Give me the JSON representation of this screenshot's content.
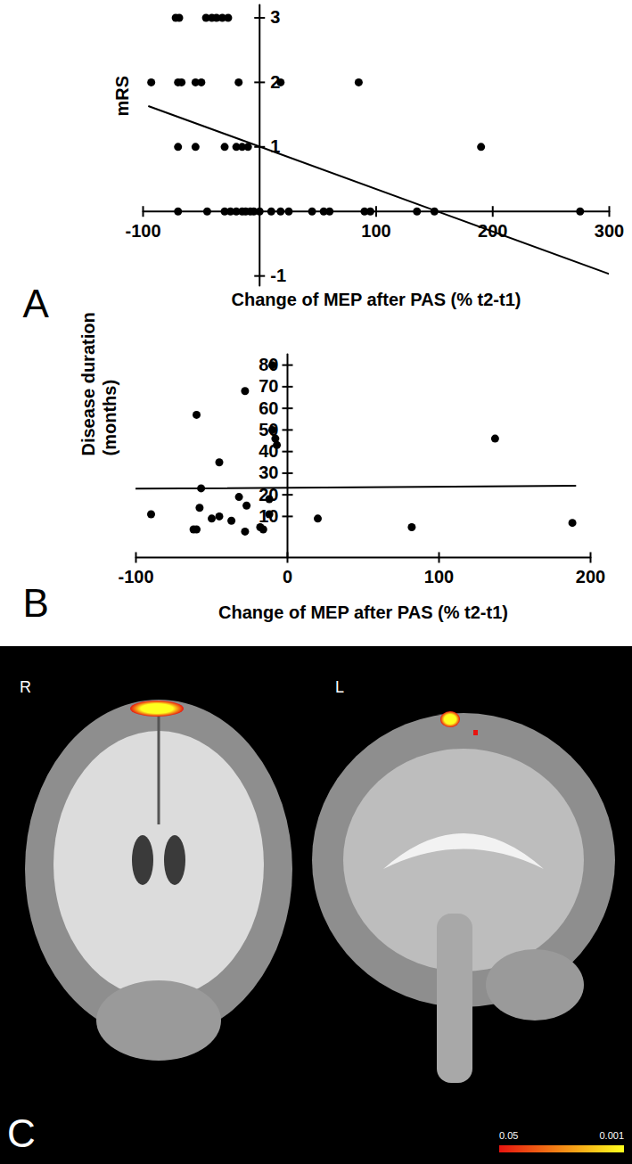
{
  "chart_data": [
    {
      "type": "scatter",
      "annotations": [
        "A"
      ],
      "xlabel": "Change of MEP after PAS (% t2-t1)",
      "ylabel": "mRS",
      "x": [
        -72,
        -69,
        -46,
        -41,
        -37,
        -32,
        -27,
        -93,
        -70,
        -67,
        -55,
        -50,
        -18,
        18,
        85,
        -70,
        -55,
        -30,
        -20,
        -15,
        -10,
        190,
        -70,
        -45,
        -30,
        -25,
        -20,
        -15,
        -12,
        -8,
        -5,
        0,
        10,
        18,
        25,
        45,
        55,
        60,
        90,
        95,
        135,
        150,
        275
      ],
      "values": [
        3,
        3,
        3,
        3,
        3,
        3,
        3,
        2,
        2,
        2,
        2,
        2,
        2,
        2,
        2,
        1,
        1,
        1,
        1,
        1,
        1,
        1,
        0,
        0,
        0,
        0,
        0,
        0,
        0,
        0,
        0,
        0,
        0,
        0,
        0,
        0,
        0,
        0,
        0,
        0,
        0,
        0,
        0
      ],
      "fit": {
        "x": [
          -95,
          300
        ],
        "values": [
          1.63,
          -0.97
        ]
      },
      "xlim": [
        -100,
        300
      ],
      "ylim": [
        -1.15,
        3.2
      ],
      "xticks": [
        -100,
        100,
        200,
        300
      ],
      "yticks": [
        -1,
        1,
        2,
        3
      ],
      "color": "#000000",
      "marker": "circle",
      "line_style": "solid"
    },
    {
      "type": "scatter",
      "annotations": [
        "B"
      ],
      "xlabel": "Change of MEP after PAS (% t2-t1)",
      "ylabel": "Disease duration\n(months)",
      "x": [
        -60,
        -28,
        -10,
        -10,
        -8,
        -7,
        -45,
        137,
        -57,
        -32,
        -12,
        -27,
        -58,
        -90,
        -45,
        -12,
        -50,
        -37,
        20,
        -62,
        -60,
        -18,
        -16,
        -28,
        82,
        188
      ],
      "values": [
        57,
        68,
        80,
        50,
        46,
        43,
        35,
        46,
        23,
        19,
        18,
        15,
        14,
        11,
        10,
        11,
        9,
        8,
        9,
        4,
        4,
        5,
        4,
        3,
        5,
        7
      ],
      "fit": {
        "x": [
          -100,
          190
        ],
        "values": [
          22.8,
          24.2
        ]
      },
      "xlim": [
        -100,
        200
      ],
      "ylim": [
        -9,
        85
      ],
      "xticks": [
        -100,
        0,
        100,
        200
      ],
      "yticks": [
        10,
        20,
        30,
        40,
        50,
        60,
        70,
        80
      ],
      "color": "#000000",
      "marker": "circle",
      "line_style": "solid"
    },
    {
      "type": "image",
      "annotations": [
        "C",
        "R",
        "L"
      ],
      "colorbar": {
        "range": [
          0.05,
          0.001
        ],
        "ticks": [
          0.05,
          0.001
        ]
      },
      "colors": [
        "#e8140f",
        "#ffff1e"
      ]
    }
  ]
}
